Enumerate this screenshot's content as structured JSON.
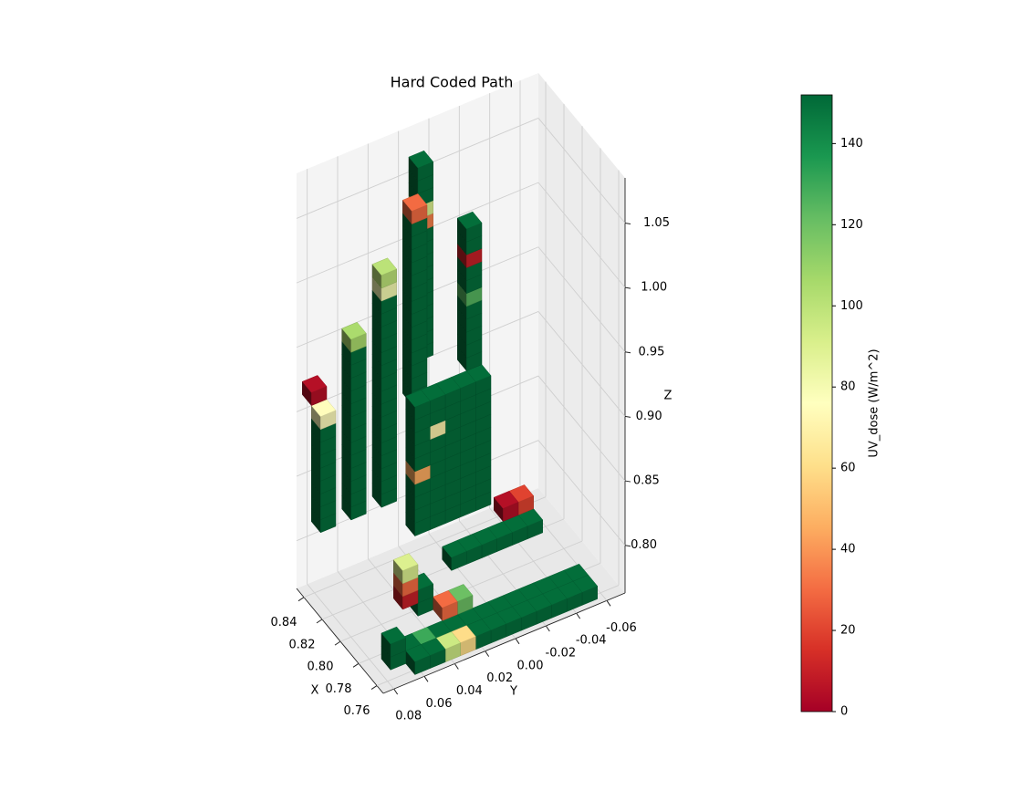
{
  "chart_data": {
    "type": "voxel3d",
    "title": "Hard Coded Path",
    "xlabel": "X",
    "ylabel": "Y",
    "zlabel": "Z",
    "xlim": [
      0.753,
      0.848
    ],
    "ylim": [
      0.087,
      -0.072
    ],
    "zlim": [
      0.763,
      1.085
    ],
    "xticks": [
      0.76,
      0.78,
      {
        "value": 0.8,
        "label": "0.80"
      },
      0.82,
      0.84
    ],
    "yticks": [
      0.08,
      0.06,
      0.04,
      0.02,
      {
        "value": 0,
        "label": "0.00"
      },
      -0.02,
      -0.04,
      -0.06
    ],
    "zticks": [
      {
        "value": 0.8,
        "label": "0.80"
      },
      0.85,
      {
        "value": 0.9,
        "label": "0.90"
      },
      0.95,
      {
        "value": 1,
        "label": "1.00"
      },
      1.05
    ],
    "grid": true,
    "colorbar": {
      "label": "UV_dose (W/m^2)",
      "clim": [
        0,
        152
      ],
      "ticks": [
        0,
        20,
        40,
        60,
        80,
        100,
        120,
        140
      ]
    },
    "colormap": [
      "#a50026",
      "#d73027",
      "#f46d43",
      "#fdae61",
      "#fee08b",
      "#ffffbf",
      "#d9ef8b",
      "#a6d96a",
      "#66bd63",
      "#1a9850",
      "#006837"
    ],
    "voxels": [
      [
        0.76,
        0.06,
        0.77,
        150
      ],
      [
        0.76,
        0.05,
        0.77,
        150
      ],
      [
        0.76,
        0.04,
        0.77,
        95
      ],
      [
        0.76,
        0.03,
        0.77,
        60
      ],
      [
        0.76,
        0.02,
        0.77,
        150
      ],
      [
        0.76,
        0.01,
        0.77,
        150
      ],
      [
        0.76,
        0,
        0.77,
        150
      ],
      [
        0.76,
        -0.01,
        0.77,
        150
      ],
      [
        0.76,
        -0.02,
        0.77,
        150
      ],
      [
        0.76,
        -0.03,
        0.77,
        150
      ],
      [
        0.76,
        -0.04,
        0.77,
        150
      ],
      [
        0.76,
        -0.05,
        0.77,
        150
      ],
      [
        0.77,
        0.06,
        0.77,
        150
      ],
      [
        0.77,
        0.05,
        0.77,
        130
      ],
      [
        0.77,
        0.04,
        0.77,
        150
      ],
      [
        0.77,
        0.03,
        0.77,
        150
      ],
      [
        0.77,
        0.02,
        0.77,
        150
      ],
      [
        0.77,
        0.01,
        0.77,
        150
      ],
      [
        0.77,
        0,
        0.77,
        150
      ],
      [
        0.77,
        -0.01,
        0.77,
        150
      ],
      [
        0.77,
        -0.02,
        0.77,
        150
      ],
      [
        0.77,
        -0.03,
        0.77,
        150
      ],
      [
        0.77,
        -0.04,
        0.77,
        150
      ],
      [
        0.77,
        -0.05,
        0.77,
        150
      ],
      [
        0.77,
        0.07,
        0.77,
        150
      ],
      [
        0.77,
        0.07,
        0.78,
        150
      ],
      [
        0.82,
        0,
        0.77,
        150
      ],
      [
        0.82,
        -0.01,
        0.77,
        150
      ],
      [
        0.82,
        -0.02,
        0.77,
        150
      ],
      [
        0.82,
        -0.03,
        0.77,
        150
      ],
      [
        0.82,
        -0.04,
        0.77,
        150
      ],
      [
        0.82,
        -0.05,
        0.77,
        150
      ],
      [
        0.83,
        -0.04,
        0.78,
        5
      ],
      [
        0.83,
        -0.05,
        0.78,
        20
      ],
      [
        0.79,
        0.05,
        0.79,
        10
      ],
      [
        0.79,
        0.05,
        0.8,
        30
      ],
      [
        0.79,
        0.05,
        0.81,
        90
      ],
      [
        0.79,
        0.04,
        0.78,
        150
      ],
      [
        0.79,
        0.04,
        0.79,
        150
      ],
      [
        0.78,
        0.02,
        0.78,
        120
      ],
      [
        0.78,
        0.03,
        0.78,
        30
      ],
      [
        0.81,
        0.03,
        0.82,
        150
      ],
      [
        0.81,
        0.03,
        0.83,
        150
      ],
      [
        0.81,
        0.03,
        0.84,
        150
      ],
      [
        0.81,
        0.03,
        0.85,
        150
      ],
      [
        0.81,
        0.03,
        0.86,
        45
      ],
      [
        0.81,
        0.03,
        0.87,
        150
      ],
      [
        0.81,
        0.03,
        0.88,
        150
      ],
      [
        0.81,
        0.03,
        0.89,
        150
      ],
      [
        0.81,
        0.03,
        0.9,
        150
      ],
      [
        0.81,
        0.03,
        0.91,
        150
      ],
      [
        0.81,
        0.02,
        0.82,
        150
      ],
      [
        0.81,
        0.02,
        0.83,
        150
      ],
      [
        0.81,
        0.02,
        0.84,
        150
      ],
      [
        0.81,
        0.02,
        0.85,
        150
      ],
      [
        0.81,
        0.02,
        0.86,
        150
      ],
      [
        0.81,
        0.02,
        0.87,
        150
      ],
      [
        0.81,
        0.02,
        0.88,
        150
      ],
      [
        0.81,
        0.02,
        0.89,
        70
      ],
      [
        0.81,
        0.02,
        0.9,
        150
      ],
      [
        0.81,
        0.02,
        0.91,
        150
      ],
      [
        0.81,
        0.01,
        0.82,
        150
      ],
      [
        0.81,
        0.01,
        0.83,
        150
      ],
      [
        0.81,
        0.01,
        0.84,
        150
      ],
      [
        0.81,
        0.01,
        0.85,
        150
      ],
      [
        0.81,
        0.01,
        0.86,
        150
      ],
      [
        0.81,
        0.01,
        0.87,
        150
      ],
      [
        0.81,
        0.01,
        0.88,
        150
      ],
      [
        0.81,
        0.01,
        0.89,
        150
      ],
      [
        0.81,
        0.01,
        0.9,
        150
      ],
      [
        0.81,
        0.01,
        0.91,
        150
      ],
      [
        0.81,
        0,
        0.82,
        150
      ],
      [
        0.81,
        0,
        0.83,
        150
      ],
      [
        0.81,
        0,
        0.84,
        150
      ],
      [
        0.81,
        0,
        0.85,
        150
      ],
      [
        0.81,
        0,
        0.86,
        150
      ],
      [
        0.81,
        0,
        0.87,
        150
      ],
      [
        0.81,
        0,
        0.88,
        150
      ],
      [
        0.81,
        0,
        0.89,
        150
      ],
      [
        0.81,
        0,
        0.9,
        150
      ],
      [
        0.81,
        0,
        0.91,
        150
      ],
      [
        0.81,
        -0.01,
        0.82,
        150
      ],
      [
        0.81,
        -0.01,
        0.83,
        150
      ],
      [
        0.81,
        -0.01,
        0.84,
        150
      ],
      [
        0.81,
        -0.01,
        0.85,
        150
      ],
      [
        0.81,
        -0.01,
        0.86,
        150
      ],
      [
        0.81,
        -0.01,
        0.87,
        150
      ],
      [
        0.81,
        -0.01,
        0.88,
        150
      ],
      [
        0.81,
        -0.01,
        0.89,
        150
      ],
      [
        0.81,
        -0.01,
        0.9,
        150
      ],
      [
        0.81,
        -0.01,
        0.91,
        150
      ],
      [
        0.83,
        0.08,
        0.83,
        150
      ],
      [
        0.83,
        0.08,
        0.84,
        150
      ],
      [
        0.83,
        0.08,
        0.85,
        150
      ],
      [
        0.83,
        0.08,
        0.86,
        150
      ],
      [
        0.83,
        0.08,
        0.87,
        150
      ],
      [
        0.83,
        0.08,
        0.88,
        150
      ],
      [
        0.83,
        0.08,
        0.89,
        150
      ],
      [
        0.83,
        0.08,
        0.9,
        150
      ],
      [
        0.83,
        0.08,
        0.91,
        75
      ],
      [
        0.84,
        0.08,
        0.92,
        5
      ],
      [
        0.83,
        0.06,
        0.83,
        150
      ],
      [
        0.83,
        0.06,
        0.84,
        150
      ],
      [
        0.83,
        0.06,
        0.85,
        150
      ],
      [
        0.83,
        0.06,
        0.86,
        150
      ],
      [
        0.83,
        0.06,
        0.87,
        150
      ],
      [
        0.83,
        0.06,
        0.88,
        150
      ],
      [
        0.83,
        0.06,
        0.89,
        150
      ],
      [
        0.83,
        0.06,
        0.9,
        150
      ],
      [
        0.83,
        0.06,
        0.91,
        150
      ],
      [
        0.83,
        0.06,
        0.92,
        150
      ],
      [
        0.83,
        0.06,
        0.93,
        150
      ],
      [
        0.83,
        0.06,
        0.94,
        150
      ],
      [
        0.83,
        0.06,
        0.95,
        150
      ],
      [
        0.83,
        0.06,
        0.96,
        105
      ],
      [
        0.83,
        0.04,
        0.83,
        150
      ],
      [
        0.83,
        0.04,
        0.84,
        150
      ],
      [
        0.83,
        0.04,
        0.85,
        150
      ],
      [
        0.83,
        0.04,
        0.86,
        150
      ],
      [
        0.83,
        0.04,
        0.87,
        150
      ],
      [
        0.83,
        0.04,
        0.88,
        150
      ],
      [
        0.83,
        0.04,
        0.89,
        150
      ],
      [
        0.83,
        0.04,
        0.9,
        150
      ],
      [
        0.83,
        0.04,
        0.91,
        150
      ],
      [
        0.83,
        0.04,
        0.92,
        150
      ],
      [
        0.83,
        0.04,
        0.93,
        150
      ],
      [
        0.83,
        0.04,
        0.94,
        150
      ],
      [
        0.83,
        0.04,
        0.95,
        150
      ],
      [
        0.83,
        0.04,
        0.96,
        150
      ],
      [
        0.83,
        0.04,
        0.97,
        150
      ],
      [
        0.83,
        0.04,
        0.98,
        150
      ],
      [
        0.83,
        0.04,
        0.99,
        80
      ],
      [
        0.83,
        0.04,
        1,
        100
      ],
      [
        0.83,
        0.02,
        0.9,
        150
      ],
      [
        0.83,
        0.02,
        0.91,
        150
      ],
      [
        0.83,
        0.02,
        0.92,
        150
      ],
      [
        0.83,
        0.02,
        0.93,
        150
      ],
      [
        0.83,
        0.02,
        0.94,
        150
      ],
      [
        0.83,
        0.02,
        0.95,
        150
      ],
      [
        0.83,
        0.02,
        0.96,
        150
      ],
      [
        0.83,
        0.02,
        0.97,
        150
      ],
      [
        0.83,
        0.02,
        0.98,
        150
      ],
      [
        0.83,
        0.02,
        0.99,
        150
      ],
      [
        0.83,
        0.02,
        1,
        150
      ],
      [
        0.83,
        0.02,
        1.01,
        150
      ],
      [
        0.83,
        0.02,
        1.02,
        150
      ],
      [
        0.83,
        0.02,
        1.03,
        150
      ],
      [
        0.83,
        0.02,
        1.04,
        30
      ],
      [
        0.84,
        0.01,
        0.92,
        150
      ],
      [
        0.84,
        0.01,
        0.93,
        150
      ],
      [
        0.84,
        0.01,
        0.94,
        150
      ],
      [
        0.84,
        0.01,
        0.95,
        150
      ],
      [
        0.84,
        0.01,
        0.96,
        150
      ],
      [
        0.84,
        0.01,
        0.97,
        150
      ],
      [
        0.84,
        0.01,
        0.98,
        150
      ],
      [
        0.84,
        0.01,
        0.99,
        150
      ],
      [
        0.84,
        0.01,
        1,
        150
      ],
      [
        0.84,
        0.01,
        1.01,
        150
      ],
      [
        0.84,
        0.01,
        1.02,
        35
      ],
      [
        0.84,
        0.01,
        1.03,
        90
      ],
      [
        0.84,
        0.01,
        1.04,
        150
      ],
      [
        0.84,
        0.01,
        1.05,
        150
      ],
      [
        0.84,
        0.01,
        1.06,
        150
      ],
      [
        0.82,
        -0.01,
        0.92,
        150
      ],
      [
        0.82,
        -0.01,
        0.93,
        150
      ],
      [
        0.82,
        -0.01,
        0.94,
        150
      ],
      [
        0.82,
        -0.01,
        0.95,
        150
      ],
      [
        0.82,
        -0.01,
        0.96,
        150
      ],
      [
        0.82,
        -0.01,
        0.97,
        125
      ],
      [
        0.82,
        -0.01,
        0.98,
        150
      ],
      [
        0.82,
        -0.01,
        0.99,
        150
      ],
      [
        0.82,
        -0.01,
        1,
        10
      ],
      [
        0.82,
        -0.01,
        1.01,
        150
      ],
      [
        0.82,
        -0.01,
        1.02,
        150
      ]
    ]
  }
}
